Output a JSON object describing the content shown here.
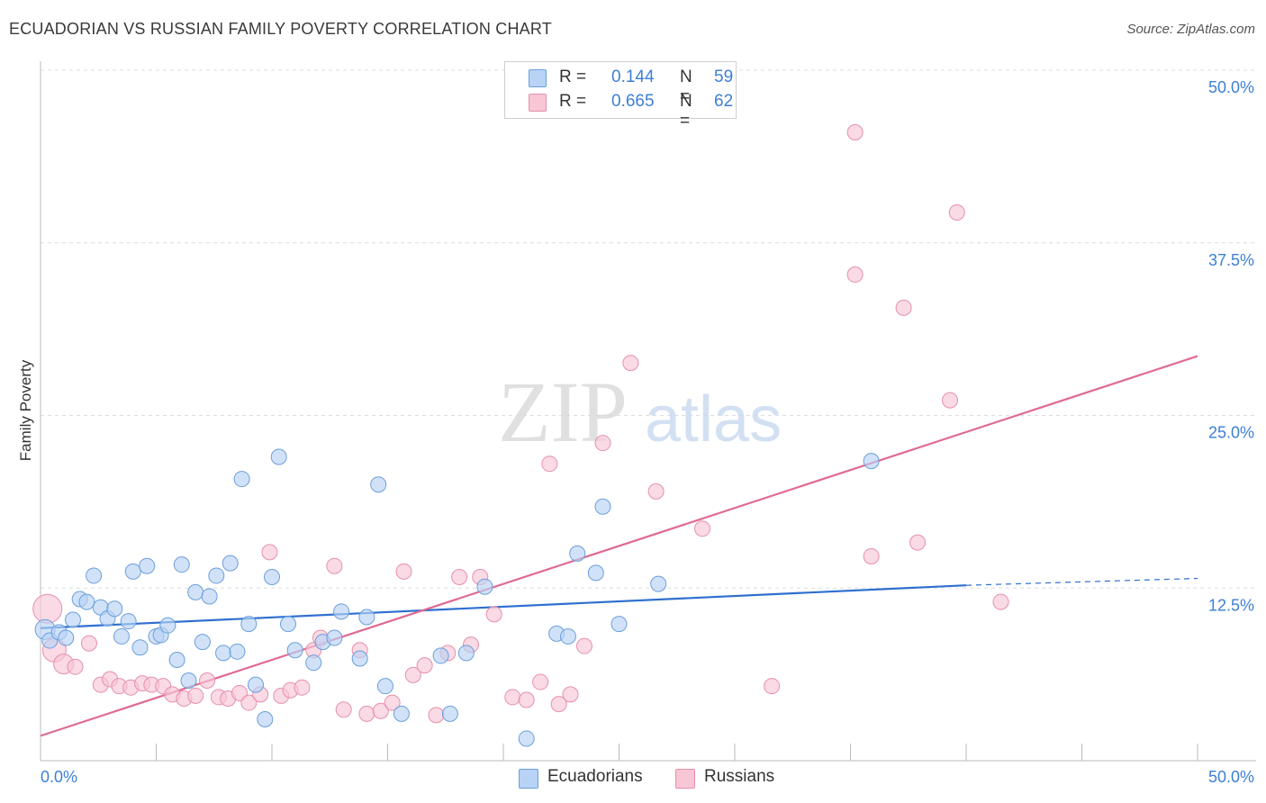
{
  "title": "ECUADORIAN VS RUSSIAN FAMILY POVERTY CORRELATION CHART",
  "source": "Source: ZipAtlas.com",
  "watermark": {
    "zip": "ZIP",
    "atlas": "atlas"
  },
  "legend_top": [
    {
      "r_label": "R =",
      "r_value": "0.144",
      "n_label": "N =",
      "n_value": "59"
    },
    {
      "r_label": "R =",
      "r_value": "0.665",
      "n_label": "N =",
      "n_value": "62"
    }
  ],
  "legend_bottom": [
    "Ecuadorians",
    "Russians"
  ],
  "colors": {
    "blue_fill": "#b8d3f5",
    "blue_stroke": "#6a9fdc",
    "blue_line": "#2f6fcf",
    "pink_fill": "#f8c6d5",
    "pink_stroke": "#e690ab",
    "pink_line": "#e06a93",
    "tick_label": "#3d7fd6",
    "grid": "#dddddd"
  },
  "chart_data": {
    "type": "scatter",
    "title": "ECUADORIAN VS RUSSIAN FAMILY POVERTY CORRELATION CHART",
    "xlabel": "",
    "ylabel": "Family Poverty",
    "xlim": [
      0,
      50
    ],
    "ylim": [
      0,
      50
    ],
    "x_tick_labels": [
      "0.0%",
      "50.0%"
    ],
    "y_ticks": [
      12.5,
      25.0,
      37.5,
      50.0
    ],
    "y_tick_labels": [
      "12.5%",
      "25.0%",
      "37.5%",
      "50.0%"
    ],
    "grid": "horizontal dashed",
    "legend_placement": "top-center",
    "series": [
      {
        "name": "Ecuadorians",
        "r": 0.144,
        "n": 59,
        "trend": {
          "x": [
            0,
            40
          ],
          "y": [
            9.6,
            12.7
          ],
          "dashed_extension_to": [
            50,
            13.2
          ]
        },
        "points": [
          [
            0.2,
            9.5
          ],
          [
            0.4,
            8.7
          ],
          [
            0.8,
            9.3
          ],
          [
            1.1,
            8.9
          ],
          [
            1.4,
            10.2
          ],
          [
            1.7,
            11.7
          ],
          [
            2.0,
            11.5
          ],
          [
            2.3,
            13.4
          ],
          [
            2.6,
            11.1
          ],
          [
            2.9,
            10.3
          ],
          [
            3.2,
            11.0
          ],
          [
            3.5,
            9.0
          ],
          [
            3.8,
            10.1
          ],
          [
            4.0,
            13.7
          ],
          [
            4.3,
            8.2
          ],
          [
            4.6,
            14.1
          ],
          [
            5.0,
            9.0
          ],
          [
            5.2,
            9.1
          ],
          [
            5.5,
            9.8
          ],
          [
            5.9,
            7.3
          ],
          [
            6.1,
            14.2
          ],
          [
            6.4,
            5.8
          ],
          [
            6.7,
            12.2
          ],
          [
            7.0,
            8.6
          ],
          [
            7.3,
            11.9
          ],
          [
            7.6,
            13.4
          ],
          [
            7.9,
            7.8
          ],
          [
            8.2,
            14.3
          ],
          [
            8.5,
            7.9
          ],
          [
            8.7,
            20.4
          ],
          [
            9.0,
            9.9
          ],
          [
            9.3,
            5.5
          ],
          [
            9.7,
            3.0
          ],
          [
            10.0,
            13.3
          ],
          [
            10.3,
            22.0
          ],
          [
            10.7,
            9.9
          ],
          [
            11.0,
            8.0
          ],
          [
            11.8,
            7.1
          ],
          [
            12.2,
            8.6
          ],
          [
            12.7,
            8.9
          ],
          [
            13.0,
            10.8
          ],
          [
            13.8,
            7.4
          ],
          [
            14.1,
            10.4
          ],
          [
            14.6,
            20.0
          ],
          [
            14.9,
            5.4
          ],
          [
            15.6,
            3.4
          ],
          [
            17.3,
            7.6
          ],
          [
            17.7,
            3.4
          ],
          [
            18.4,
            7.8
          ],
          [
            19.2,
            12.6
          ],
          [
            21.0,
            1.6
          ],
          [
            22.3,
            9.2
          ],
          [
            22.8,
            9.0
          ],
          [
            23.2,
            15.0
          ],
          [
            24.0,
            13.6
          ],
          [
            24.3,
            18.4
          ],
          [
            25.0,
            9.9
          ],
          [
            26.7,
            12.8
          ],
          [
            35.9,
            21.7
          ]
        ]
      },
      {
        "name": "Russians",
        "r": 0.665,
        "n": 62,
        "trend": {
          "x": [
            0,
            50
          ],
          "y": [
            1.8,
            29.3
          ]
        },
        "points": [
          [
            0.3,
            11.0
          ],
          [
            0.6,
            8.0
          ],
          [
            1.0,
            7.0
          ],
          [
            1.5,
            6.8
          ],
          [
            2.1,
            8.5
          ],
          [
            2.6,
            5.5
          ],
          [
            3.0,
            5.9
          ],
          [
            3.4,
            5.4
          ],
          [
            3.9,
            5.3
          ],
          [
            4.4,
            5.6
          ],
          [
            4.8,
            5.5
          ],
          [
            5.3,
            5.4
          ],
          [
            5.7,
            4.8
          ],
          [
            6.2,
            4.5
          ],
          [
            6.7,
            4.7
          ],
          [
            7.2,
            5.8
          ],
          [
            7.7,
            4.6
          ],
          [
            8.1,
            4.5
          ],
          [
            8.6,
            4.9
          ],
          [
            9.0,
            4.2
          ],
          [
            9.5,
            4.8
          ],
          [
            9.9,
            15.1
          ],
          [
            10.4,
            4.7
          ],
          [
            10.8,
            5.1
          ],
          [
            11.3,
            5.3
          ],
          [
            11.8,
            8.0
          ],
          [
            12.1,
            8.9
          ],
          [
            12.7,
            14.1
          ],
          [
            13.1,
            3.7
          ],
          [
            13.8,
            8.0
          ],
          [
            14.1,
            3.4
          ],
          [
            14.7,
            3.6
          ],
          [
            15.2,
            4.2
          ],
          [
            15.7,
            13.7
          ],
          [
            16.1,
            6.2
          ],
          [
            16.6,
            6.9
          ],
          [
            17.1,
            3.3
          ],
          [
            17.6,
            7.8
          ],
          [
            18.1,
            13.3
          ],
          [
            18.6,
            8.4
          ],
          [
            19.0,
            13.3
          ],
          [
            19.6,
            10.6
          ],
          [
            20.4,
            4.6
          ],
          [
            21.0,
            4.4
          ],
          [
            21.6,
            5.7
          ],
          [
            22.0,
            21.5
          ],
          [
            22.4,
            4.1
          ],
          [
            22.9,
            4.8
          ],
          [
            23.5,
            8.3
          ],
          [
            24.3,
            23.0
          ],
          [
            25.5,
            28.8
          ],
          [
            26.6,
            19.5
          ],
          [
            28.6,
            16.8
          ],
          [
            31.6,
            5.4
          ],
          [
            35.2,
            45.5
          ],
          [
            35.2,
            35.2
          ],
          [
            35.9,
            14.8
          ],
          [
            37.3,
            32.8
          ],
          [
            37.9,
            15.8
          ],
          [
            39.3,
            26.1
          ],
          [
            39.6,
            39.7
          ],
          [
            41.5,
            11.5
          ]
        ]
      }
    ]
  }
}
